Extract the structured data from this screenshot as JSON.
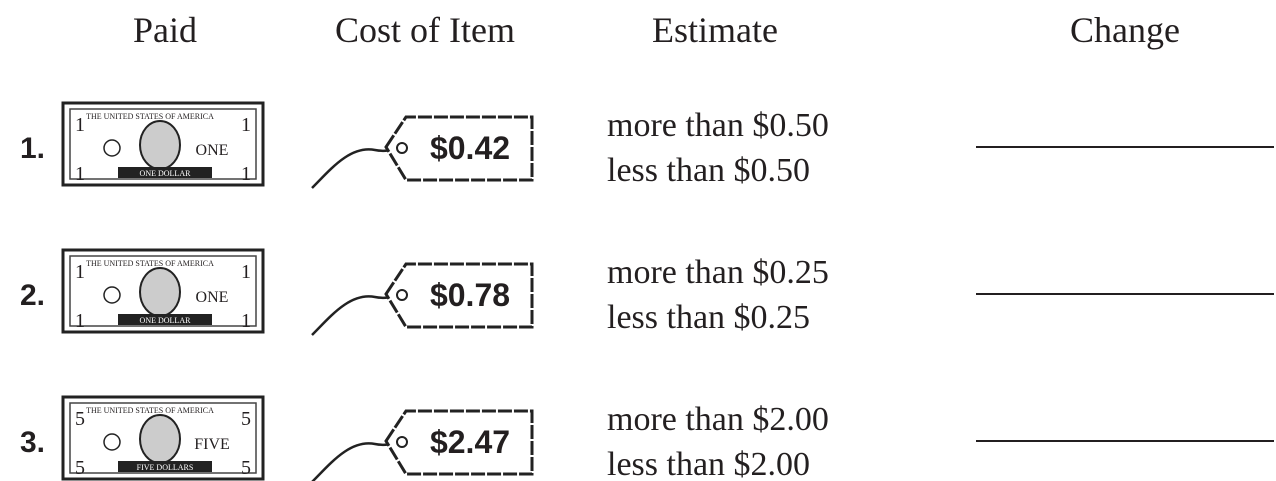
{
  "header": {
    "paid": "Paid",
    "cost": "Cost of Item",
    "estimate": "Estimate",
    "change": "Change"
  },
  "rows": [
    {
      "number": "1.",
      "bill": {
        "top": "THE UNITED STATES OF AMERICA",
        "word": "ONE",
        "bottom": "ONE DOLLAR",
        "corner": "1"
      },
      "price": "$0.42",
      "estimate": [
        "more than $0.50",
        "less than $0.50"
      ]
    },
    {
      "number": "2.",
      "bill": {
        "top": "THE UNITED STATES OF AMERICA",
        "word": "ONE",
        "bottom": "ONE DOLLAR",
        "corner": "1"
      },
      "price": "$0.78",
      "estimate": [
        "more than $0.25",
        "less than $0.25"
      ]
    },
    {
      "number": "3.",
      "bill": {
        "top": "THE UNITED STATES OF AMERICA",
        "word": "FIVE",
        "bottom": "FIVE DOLLARS",
        "corner": "5"
      },
      "price": "$2.47",
      "estimate": [
        "more than $2.00",
        "less than $2.00"
      ]
    }
  ]
}
